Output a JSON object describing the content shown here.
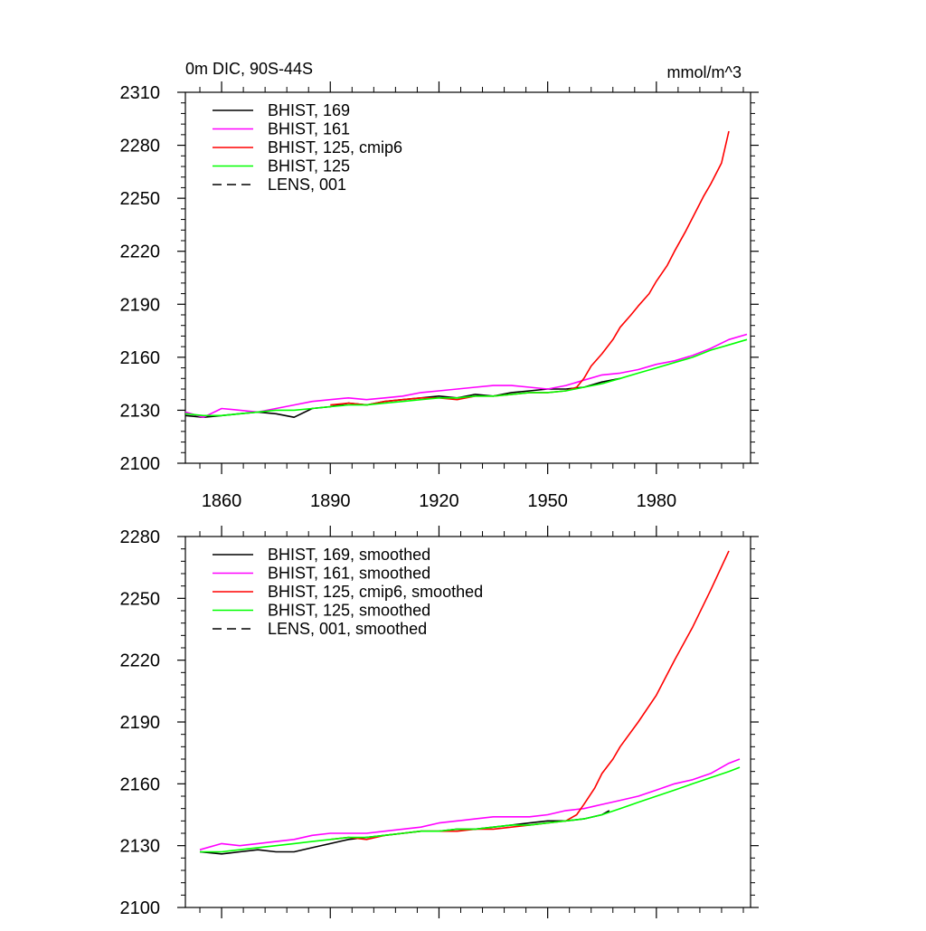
{
  "chart_data": [
    {
      "type": "line",
      "title": "0m DIC, 90S-44S",
      "units": "mmol/m^3",
      "xlim": [
        1850,
        2006
      ],
      "ylim": [
        2100,
        2310
      ],
      "xticks": [
        1860,
        1890,
        1920,
        1950,
        1980
      ],
      "xtick_labels": [
        "1860",
        "1890",
        "1920",
        "1950",
        "1980"
      ],
      "yticks": [
        2100,
        2130,
        2160,
        2190,
        2220,
        2250,
        2280,
        2310
      ],
      "ytick_labels": [
        "2100",
        "2130",
        "2160",
        "2190",
        "2220",
        "2250",
        "2280",
        "2310"
      ],
      "legend_position": "top-left",
      "series": [
        {
          "name": "BHIST, 169",
          "color": "#000000",
          "dash": "solid",
          "x": [
            1850,
            1855,
            1860,
            1865,
            1870,
            1875,
            1880,
            1885,
            1890,
            1895,
            1900,
            1905,
            1910,
            1915,
            1920,
            1925,
            1930,
            1935,
            1940,
            1945,
            1950,
            1955,
            1960,
            1965,
            1970
          ],
          "y": [
            2127,
            2126,
            2127,
            2128,
            2129,
            2128,
            2126,
            2131,
            2132,
            2134,
            2133,
            2135,
            2136,
            2137,
            2138,
            2137,
            2139,
            2138,
            2140,
            2141,
            2142,
            2142,
            2143,
            2146,
            2148
          ]
        },
        {
          "name": "BHIST, 161",
          "color": "#ff00ff",
          "dash": "solid",
          "x": [
            1850,
            1855,
            1860,
            1865,
            1870,
            1875,
            1880,
            1885,
            1890,
            1895,
            1900,
            1905,
            1910,
            1915,
            1920,
            1925,
            1930,
            1935,
            1940,
            1945,
            1950,
            1955,
            1960,
            1965,
            1970,
            1975,
            1980,
            1985,
            1990,
            1995,
            2000,
            2005
          ],
          "y": [
            2129,
            2126,
            2131,
            2130,
            2129,
            2131,
            2133,
            2135,
            2136,
            2137,
            2136,
            2137,
            2138,
            2140,
            2141,
            2142,
            2143,
            2144,
            2144,
            2143,
            2142,
            2144,
            2147,
            2150,
            2151,
            2153,
            2156,
            2158,
            2161,
            2165,
            2170,
            2173
          ]
        },
        {
          "name": "BHIST, 125, cmip6",
          "color": "#ff0000",
          "dash": "solid",
          "x": [
            1890,
            1895,
            1900,
            1905,
            1910,
            1915,
            1920,
            1925,
            1930,
            1935,
            1940,
            1945,
            1950,
            1955,
            1958,
            1960,
            1962,
            1965,
            1968,
            1970,
            1973,
            1975,
            1978,
            1980,
            1983,
            1985,
            1988,
            1990,
            1993,
            1995,
            1998,
            2000
          ],
          "y": [
            2133,
            2134,
            2133,
            2135,
            2136,
            2137,
            2137,
            2136,
            2138,
            2138,
            2139,
            2140,
            2140,
            2141,
            2143,
            2148,
            2155,
            2162,
            2170,
            2177,
            2184,
            2189,
            2196,
            2203,
            2212,
            2220,
            2231,
            2239,
            2251,
            2258,
            2270,
            2288
          ]
        },
        {
          "name": "BHIST, 125",
          "color": "#00ff00",
          "dash": "solid",
          "x": [
            1850,
            1855,
            1860,
            1865,
            1870,
            1875,
            1880,
            1885,
            1890,
            1895,
            1900,
            1905,
            1910,
            1915,
            1920,
            1925,
            1930,
            1935,
            1940,
            1945,
            1950,
            1955,
            1960,
            1965,
            1970,
            1975,
            1980,
            1985,
            1990,
            1995,
            2000,
            2005
          ],
          "y": [
            2128,
            2127,
            2127,
            2128,
            2129,
            2130,
            2130,
            2131,
            2132,
            2133,
            2133,
            2134,
            2135,
            2136,
            2137,
            2137,
            2138,
            2138,
            2139,
            2140,
            2140,
            2141,
            2143,
            2145,
            2148,
            2151,
            2154,
            2157,
            2160,
            2164,
            2167,
            2170
          ]
        },
        {
          "name": "LENS, 001",
          "color": "#000000",
          "dash": "dashed",
          "x": [],
          "y": []
        }
      ]
    },
    {
      "type": "line",
      "title": "",
      "units": "",
      "xlim": [
        1850,
        2006
      ],
      "ylim": [
        2100,
        2280
      ],
      "xticks": [
        1860,
        1890,
        1920,
        1950,
        1980
      ],
      "xtick_labels": [],
      "yticks": [
        2100,
        2130,
        2160,
        2190,
        2220,
        2250,
        2280
      ],
      "ytick_labels": [
        "2100",
        "2130",
        "2160",
        "2190",
        "2220",
        "2250",
        "2280"
      ],
      "legend_position": "top-left",
      "series": [
        {
          "name": "BHIST, 169, smoothed",
          "color": "#000000",
          "dash": "solid",
          "x": [
            1854,
            1860,
            1865,
            1870,
            1875,
            1880,
            1885,
            1890,
            1895,
            1900,
            1905,
            1910,
            1915,
            1920,
            1925,
            1930,
            1935,
            1940,
            1945,
            1950,
            1955,
            1960,
            1965,
            1967
          ],
          "y": [
            2127,
            2126,
            2127,
            2128,
            2127,
            2127,
            2129,
            2131,
            2133,
            2134,
            2135,
            2136,
            2137,
            2137,
            2138,
            2138,
            2139,
            2140,
            2141,
            2142,
            2142,
            2143,
            2145,
            2147
          ]
        },
        {
          "name": "BHIST, 161, smoothed",
          "color": "#ff00ff",
          "dash": "solid",
          "x": [
            1854,
            1860,
            1865,
            1870,
            1875,
            1880,
            1885,
            1890,
            1895,
            1900,
            1905,
            1910,
            1915,
            1920,
            1925,
            1930,
            1935,
            1940,
            1945,
            1950,
            1955,
            1960,
            1965,
            1970,
            1975,
            1980,
            1985,
            1990,
            1995,
            2000,
            2003
          ],
          "y": [
            2128,
            2131,
            2130,
            2131,
            2132,
            2133,
            2135,
            2136,
            2136,
            2136,
            2137,
            2138,
            2139,
            2141,
            2142,
            2143,
            2144,
            2144,
            2144,
            2145,
            2147,
            2148,
            2150,
            2152,
            2154,
            2157,
            2160,
            2162,
            2165,
            2170,
            2172
          ]
        },
        {
          "name": "BHIST, 125, cmip6, smoothed",
          "color": "#ff0000",
          "dash": "solid",
          "x": [
            1890,
            1895,
            1900,
            1905,
            1910,
            1915,
            1920,
            1925,
            1930,
            1935,
            1940,
            1945,
            1950,
            1955,
            1958,
            1960,
            1963,
            1965,
            1968,
            1970,
            1975,
            1980,
            1985,
            1990,
            1995,
            2000
          ],
          "y": [
            2133,
            2134,
            2133,
            2135,
            2136,
            2137,
            2137,
            2137,
            2138,
            2138,
            2139,
            2140,
            2141,
            2142,
            2145,
            2150,
            2158,
            2165,
            2172,
            2178,
            2190,
            2203,
            2220,
            2236,
            2254,
            2273
          ]
        },
        {
          "name": "BHIST, 125, smoothed",
          "color": "#00ff00",
          "dash": "solid",
          "x": [
            1854,
            1860,
            1865,
            1870,
            1875,
            1880,
            1885,
            1890,
            1895,
            1900,
            1905,
            1910,
            1915,
            1920,
            1925,
            1930,
            1935,
            1940,
            1945,
            1950,
            1955,
            1960,
            1965,
            1970,
            1975,
            1980,
            1985,
            1990,
            1995,
            2000,
            2003
          ],
          "y": [
            2127,
            2127,
            2128,
            2129,
            2130,
            2131,
            2132,
            2133,
            2134,
            2134,
            2135,
            2136,
            2137,
            2137,
            2138,
            2138,
            2139,
            2140,
            2140,
            2141,
            2142,
            2143,
            2145,
            2148,
            2151,
            2154,
            2157,
            2160,
            2163,
            2166,
            2168
          ]
        },
        {
          "name": "LENS, 001, smoothed",
          "color": "#000000",
          "dash": "dashed",
          "x": [],
          "y": []
        }
      ]
    }
  ]
}
